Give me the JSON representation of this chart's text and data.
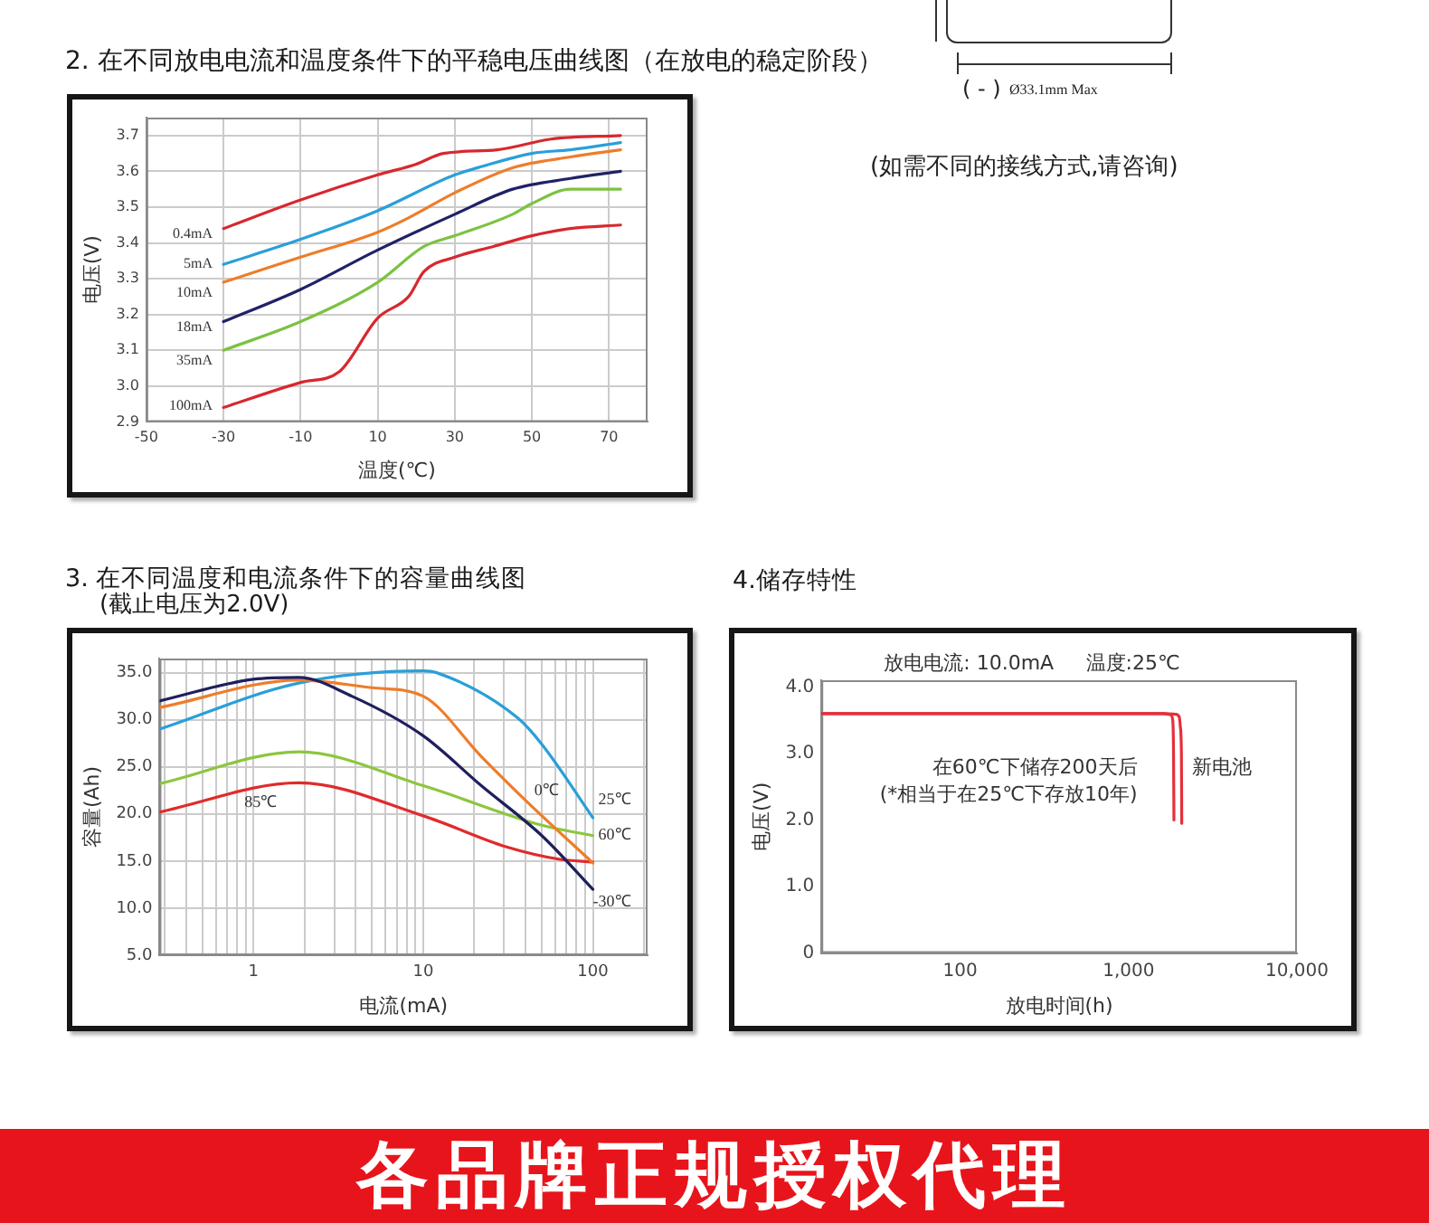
{
  "chart_data": [
    {
      "type": "line",
      "title": "2. 在不同放电电流和温度条件下的平稳电压曲线图（在放电的稳定阶段）",
      "xlabel": "温度(℃)",
      "ylabel": "电压(V)",
      "xlim": [
        -50,
        80
      ],
      "ylim": [
        2.9,
        3.75
      ],
      "xticks": [
        -50,
        -30,
        -10,
        10,
        30,
        50,
        70
      ],
      "yticks": [
        2.9,
        {
          "value": 3,
          "label": "3.0"
        },
        3.1,
        3.2,
        3.3,
        3.4,
        3.5,
        3.6,
        3.7
      ],
      "grid": true,
      "marker": "none",
      "series": [
        {
          "name": "0.4mA",
          "color": "#d7282f",
          "x": [
            -30,
            -10,
            10,
            20,
            27,
            41,
            55,
            73
          ],
          "values": [
            3.44,
            3.52,
            3.59,
            3.62,
            3.65,
            3.66,
            3.69,
            3.7
          ]
        },
        {
          "name": "5mA",
          "color": "#2a9fd8",
          "x": [
            -30,
            -10,
            10,
            30,
            36,
            50,
            60,
            73
          ],
          "values": [
            3.34,
            3.41,
            3.49,
            3.59,
            3.61,
            3.65,
            3.66,
            3.68
          ]
        },
        {
          "name": "10mA",
          "color": "#ee7d2a",
          "x": [
            -30,
            -10,
            10,
            18,
            30,
            45,
            60,
            73
          ],
          "values": [
            3.29,
            3.36,
            3.43,
            3.47,
            3.54,
            3.61,
            3.64,
            3.66
          ]
        },
        {
          "name": "18mA",
          "color": "#1f2266",
          "x": [
            -30,
            -10,
            10,
            30,
            45,
            60,
            73
          ],
          "values": [
            3.18,
            3.27,
            3.38,
            3.48,
            3.55,
            3.58,
            3.6
          ]
        },
        {
          "name": "35mA",
          "color": "#7cc242",
          "x": [
            -30,
            -10,
            10,
            22,
            30,
            45,
            50,
            60,
            65,
            73
          ],
          "values": [
            3.1,
            3.18,
            3.29,
            3.39,
            3.42,
            3.48,
            3.51,
            3.55,
            3.55,
            3.55
          ]
        },
        {
          "name": "100mA",
          "color": "#d7282f",
          "x": [
            -30,
            -10,
            0,
            10,
            18,
            22,
            30,
            40,
            50,
            60,
            73
          ],
          "values": [
            2.94,
            3.01,
            3.04,
            3.19,
            3.25,
            3.32,
            3.36,
            3.39,
            3.42,
            3.44,
            3.45
          ]
        }
      ]
    },
    {
      "type": "other",
      "annotations": [
        "( - )",
        "Ø33.1mm Max",
        "(如需不同的接线方式,请咨询)"
      ]
    },
    {
      "type": "line",
      "title": "3. 在不同温度和电流条件下的容量曲线图",
      "subtitle": "(截止电压为2.0V)",
      "xlabel": "电流(mA)",
      "ylabel": "容量(Ah)",
      "log": "x",
      "xlim": [
        0.28,
        210
      ],
      "ylim": [
        5,
        36.5
      ],
      "xticks": [
        {
          "value": 0.3,
          "label": null
        },
        {
          "value": 0.4,
          "label": null
        },
        {
          "value": 0.5,
          "label": null
        },
        {
          "value": 0.6,
          "label": null
        },
        {
          "value": 0.7,
          "label": null
        },
        {
          "value": 0.8,
          "label": null
        },
        {
          "value": 0.9,
          "label": null
        },
        1,
        {
          "value": 2,
          "label": null
        },
        {
          "value": 3,
          "label": null
        },
        {
          "value": 4,
          "label": null
        },
        {
          "value": 5,
          "label": null
        },
        {
          "value": 6,
          "label": null
        },
        {
          "value": 7,
          "label": null
        },
        {
          "value": 8,
          "label": null
        },
        {
          "value": 9,
          "label": null
        },
        10,
        {
          "value": 20,
          "label": null
        },
        {
          "value": 30,
          "label": null
        },
        {
          "value": 40,
          "label": null
        },
        {
          "value": 50,
          "label": null
        },
        {
          "value": 60,
          "label": null
        },
        {
          "value": 70,
          "label": null
        },
        {
          "value": 80,
          "label": null
        },
        {
          "value": 90,
          "label": null
        },
        100,
        {
          "value": 200,
          "label": null
        }
      ],
      "yticks": [
        {
          "value": 5,
          "label": "5.0"
        },
        {
          "value": 10,
          "label": "10.0"
        },
        {
          "value": 15,
          "label": "15.0"
        },
        {
          "value": 20,
          "label": "20.0"
        },
        {
          "value": 25,
          "label": "25.0"
        },
        {
          "value": 30,
          "label": "30.0"
        },
        {
          "value": 35,
          "label": "35.0"
        }
      ],
      "grid": true,
      "marker": "none",
      "series": [
        {
          "name": "-30℃",
          "color": "#1f1f5e",
          "x": [
            0.28,
            1,
            1.85,
            3.8,
            10,
            22,
            50,
            100
          ],
          "values": [
            32.0,
            34.3,
            34.5,
            32.5,
            28.3,
            23.0,
            17.7,
            12.0
          ]
        },
        {
          "name": "0℃",
          "color": "#ee7d2a",
          "x": [
            0.28,
            1.85,
            5,
            10,
            22,
            42,
            100
          ],
          "values": [
            31.3,
            34.2,
            33.4,
            32.5,
            26.1,
            21.1,
            14.8
          ]
        },
        {
          "name": "25℃",
          "color": "#2a9fd8",
          "x": [
            0.28,
            1.85,
            10,
            12,
            36,
            50,
            100
          ],
          "values": [
            29.0,
            33.9,
            35.2,
            35.0,
            30.2,
            27.4,
            19.6
          ]
        },
        {
          "name": "60℃",
          "color": "#8cc63f",
          "x": [
            0.28,
            1.85,
            10,
            50,
            100
          ],
          "values": [
            23.2,
            26.6,
            23.0,
            18.8,
            17.7
          ]
        },
        {
          "name": "85℃",
          "color": "#e02b2b",
          "x": [
            0.28,
            1.85,
            10,
            31,
            63,
            100
          ],
          "values": [
            20.2,
            23.3,
            19.8,
            16.5,
            15.2,
            14.9
          ]
        }
      ]
    },
    {
      "type": "line",
      "title": "4.储存特性",
      "xlabel": "放电时间(h)",
      "ylabel": "电压(V)",
      "log": "x",
      "xlim": [
        15,
        10000
      ],
      "ylim": [
        0,
        4.1
      ],
      "xticks": [
        100,
        {
          "value": 1000,
          "label": "1,000"
        },
        {
          "value": 10000,
          "label": "10,000"
        }
      ],
      "yticks": [
        0,
        {
          "value": 1,
          "label": "1.0"
        },
        {
          "value": 2,
          "label": "2.0"
        },
        {
          "value": 3,
          "label": "3.0"
        },
        {
          "value": 4,
          "label": "4.0"
        }
      ],
      "marker": "none",
      "annotations": [
        "放电电流: 10.0mA",
        "温度:25℃",
        "(*相当于在25℃下存放10年)"
      ],
      "series": [
        {
          "name": "在60℃下储存200天后",
          "color": "#e5303a",
          "x": [
            15,
            1600,
            1780,
            1830,
            1850,
            1860
          ],
          "values": [
            3.6,
            3.6,
            3.58,
            3.5,
            3.0,
            2.0
          ]
        },
        {
          "name": "新电池",
          "color": "#e5303a",
          "x": [
            15,
            1650,
            1900,
            2000,
            2030,
            2060,
            2070
          ],
          "values": [
            3.6,
            3.6,
            3.59,
            3.55,
            3.4,
            3.0,
            1.95
          ]
        }
      ]
    },
    {
      "type": "other",
      "annotations": [
        "各品牌正规授权代理"
      ]
    }
  ]
}
